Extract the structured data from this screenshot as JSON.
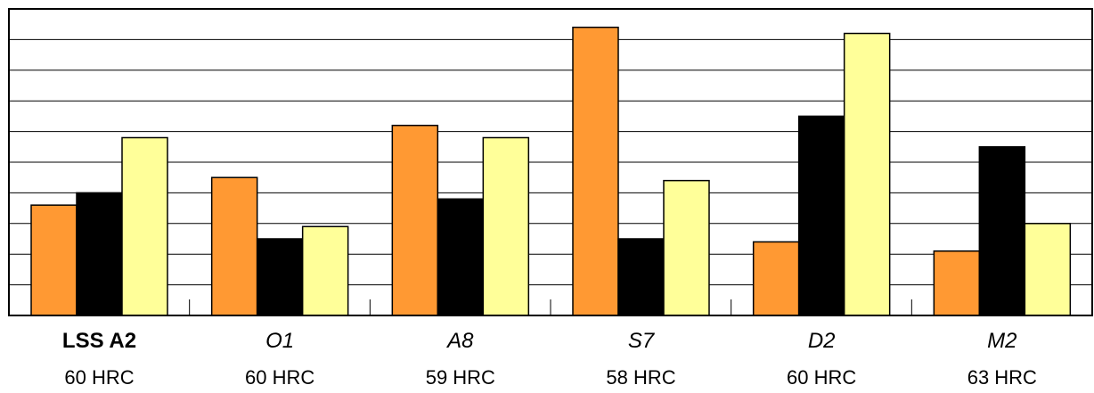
{
  "chart_data": {
    "type": "bar",
    "categories": [
      {
        "name": "LSS A2",
        "hardness": "60 HRC",
        "emphasis": "bold"
      },
      {
        "name": "O1",
        "hardness": "60 HRC",
        "emphasis": "italic"
      },
      {
        "name": "A8",
        "hardness": "59 HRC",
        "emphasis": "italic"
      },
      {
        "name": "S7",
        "hardness": "58 HRC",
        "emphasis": "italic"
      },
      {
        "name": "D2",
        "hardness": "60 HRC",
        "emphasis": "italic"
      },
      {
        "name": "M2",
        "hardness": "63 HRC",
        "emphasis": "italic"
      }
    ],
    "series": [
      {
        "color": "#FF9933",
        "values": [
          3.6,
          4.5,
          6.2,
          9.4,
          2.4,
          2.1
        ]
      },
      {
        "color": "#000000",
        "values": [
          4.0,
          2.5,
          3.8,
          2.5,
          6.5,
          5.5
        ]
      },
      {
        "color": "#FFFF99",
        "values": [
          5.8,
          2.9,
          5.8,
          4.4,
          9.2,
          3.0
        ]
      }
    ],
    "ylim": [
      0,
      10
    ],
    "y_gridlines": 10,
    "grid": true,
    "legend": "none",
    "title": "",
    "xlabel": "",
    "ylabel": ""
  }
}
